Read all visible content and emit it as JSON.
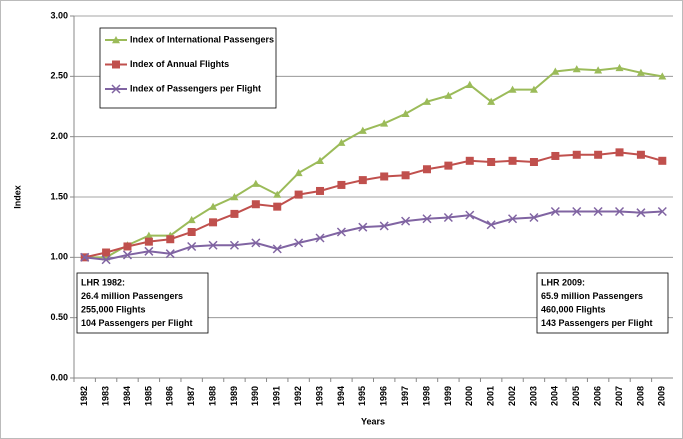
{
  "chart_data": {
    "type": "line",
    "x_label": "Years",
    "y_label": "Index",
    "categories": [
      "1982",
      "1983",
      "1984",
      "1985",
      "1986",
      "1987",
      "1988",
      "1989",
      "1990",
      "1991",
      "1992",
      "1993",
      "1994",
      "1995",
      "1996",
      "1997",
      "1998",
      "1999",
      "2000",
      "2001",
      "2002",
      "2003",
      "2004",
      "2005",
      "2006",
      "2007",
      "2008",
      "2009"
    ],
    "series": [
      {
        "name": "Index of International Passengers",
        "color": "#9bbb59",
        "marker": "triangle",
        "values": [
          1.0,
          1.0,
          1.1,
          1.18,
          1.18,
          1.31,
          1.42,
          1.5,
          1.61,
          1.52,
          1.7,
          1.8,
          1.95,
          2.05,
          2.11,
          2.19,
          2.29,
          2.34,
          2.43,
          2.29,
          2.39,
          2.39,
          2.54,
          2.56,
          2.55,
          2.57,
          2.53,
          2.5
        ]
      },
      {
        "name": "Index of Annual Flights",
        "color": "#c0504d",
        "marker": "square",
        "values": [
          1.0,
          1.04,
          1.09,
          1.13,
          1.15,
          1.21,
          1.29,
          1.36,
          1.44,
          1.42,
          1.52,
          1.55,
          1.6,
          1.64,
          1.67,
          1.68,
          1.73,
          1.76,
          1.8,
          1.79,
          1.8,
          1.79,
          1.84,
          1.85,
          1.85,
          1.87,
          1.85,
          1.8
        ]
      },
      {
        "name": "Index of Passengers per Flight",
        "color": "#8064a2",
        "marker": "x",
        "values": [
          1.0,
          0.98,
          1.02,
          1.05,
          1.03,
          1.09,
          1.1,
          1.1,
          1.12,
          1.07,
          1.12,
          1.16,
          1.21,
          1.25,
          1.26,
          1.3,
          1.32,
          1.33,
          1.35,
          1.27,
          1.32,
          1.33,
          1.38,
          1.38,
          1.38,
          1.38,
          1.37,
          1.38
        ]
      }
    ],
    "ylim": [
      0,
      3
    ],
    "yticks": [
      {
        "value": 0,
        "label": "0.00"
      },
      {
        "value": 0.5,
        "label": "0.50"
      },
      {
        "value": 1,
        "label": "1.00"
      },
      {
        "value": 1.5,
        "label": "1.50"
      },
      {
        "value": 2,
        "label": "2.00"
      },
      {
        "value": 2.5,
        "label": "2.50"
      },
      {
        "value": 3,
        "label": "3.00"
      }
    ],
    "grid": true,
    "legend": "top-left",
    "annotations": [
      {
        "position": "bottom-left",
        "lines": [
          "LHR 1982:",
          "26.4 million Passengers",
          "255,000 Flights",
          "104 Passengers per Flight"
        ]
      },
      {
        "position": "bottom-right",
        "lines": [
          "LHR 2009:",
          "65.9 million Passengers",
          "460,000 Flights",
          "143 Passengers per Flight"
        ]
      }
    ]
  }
}
